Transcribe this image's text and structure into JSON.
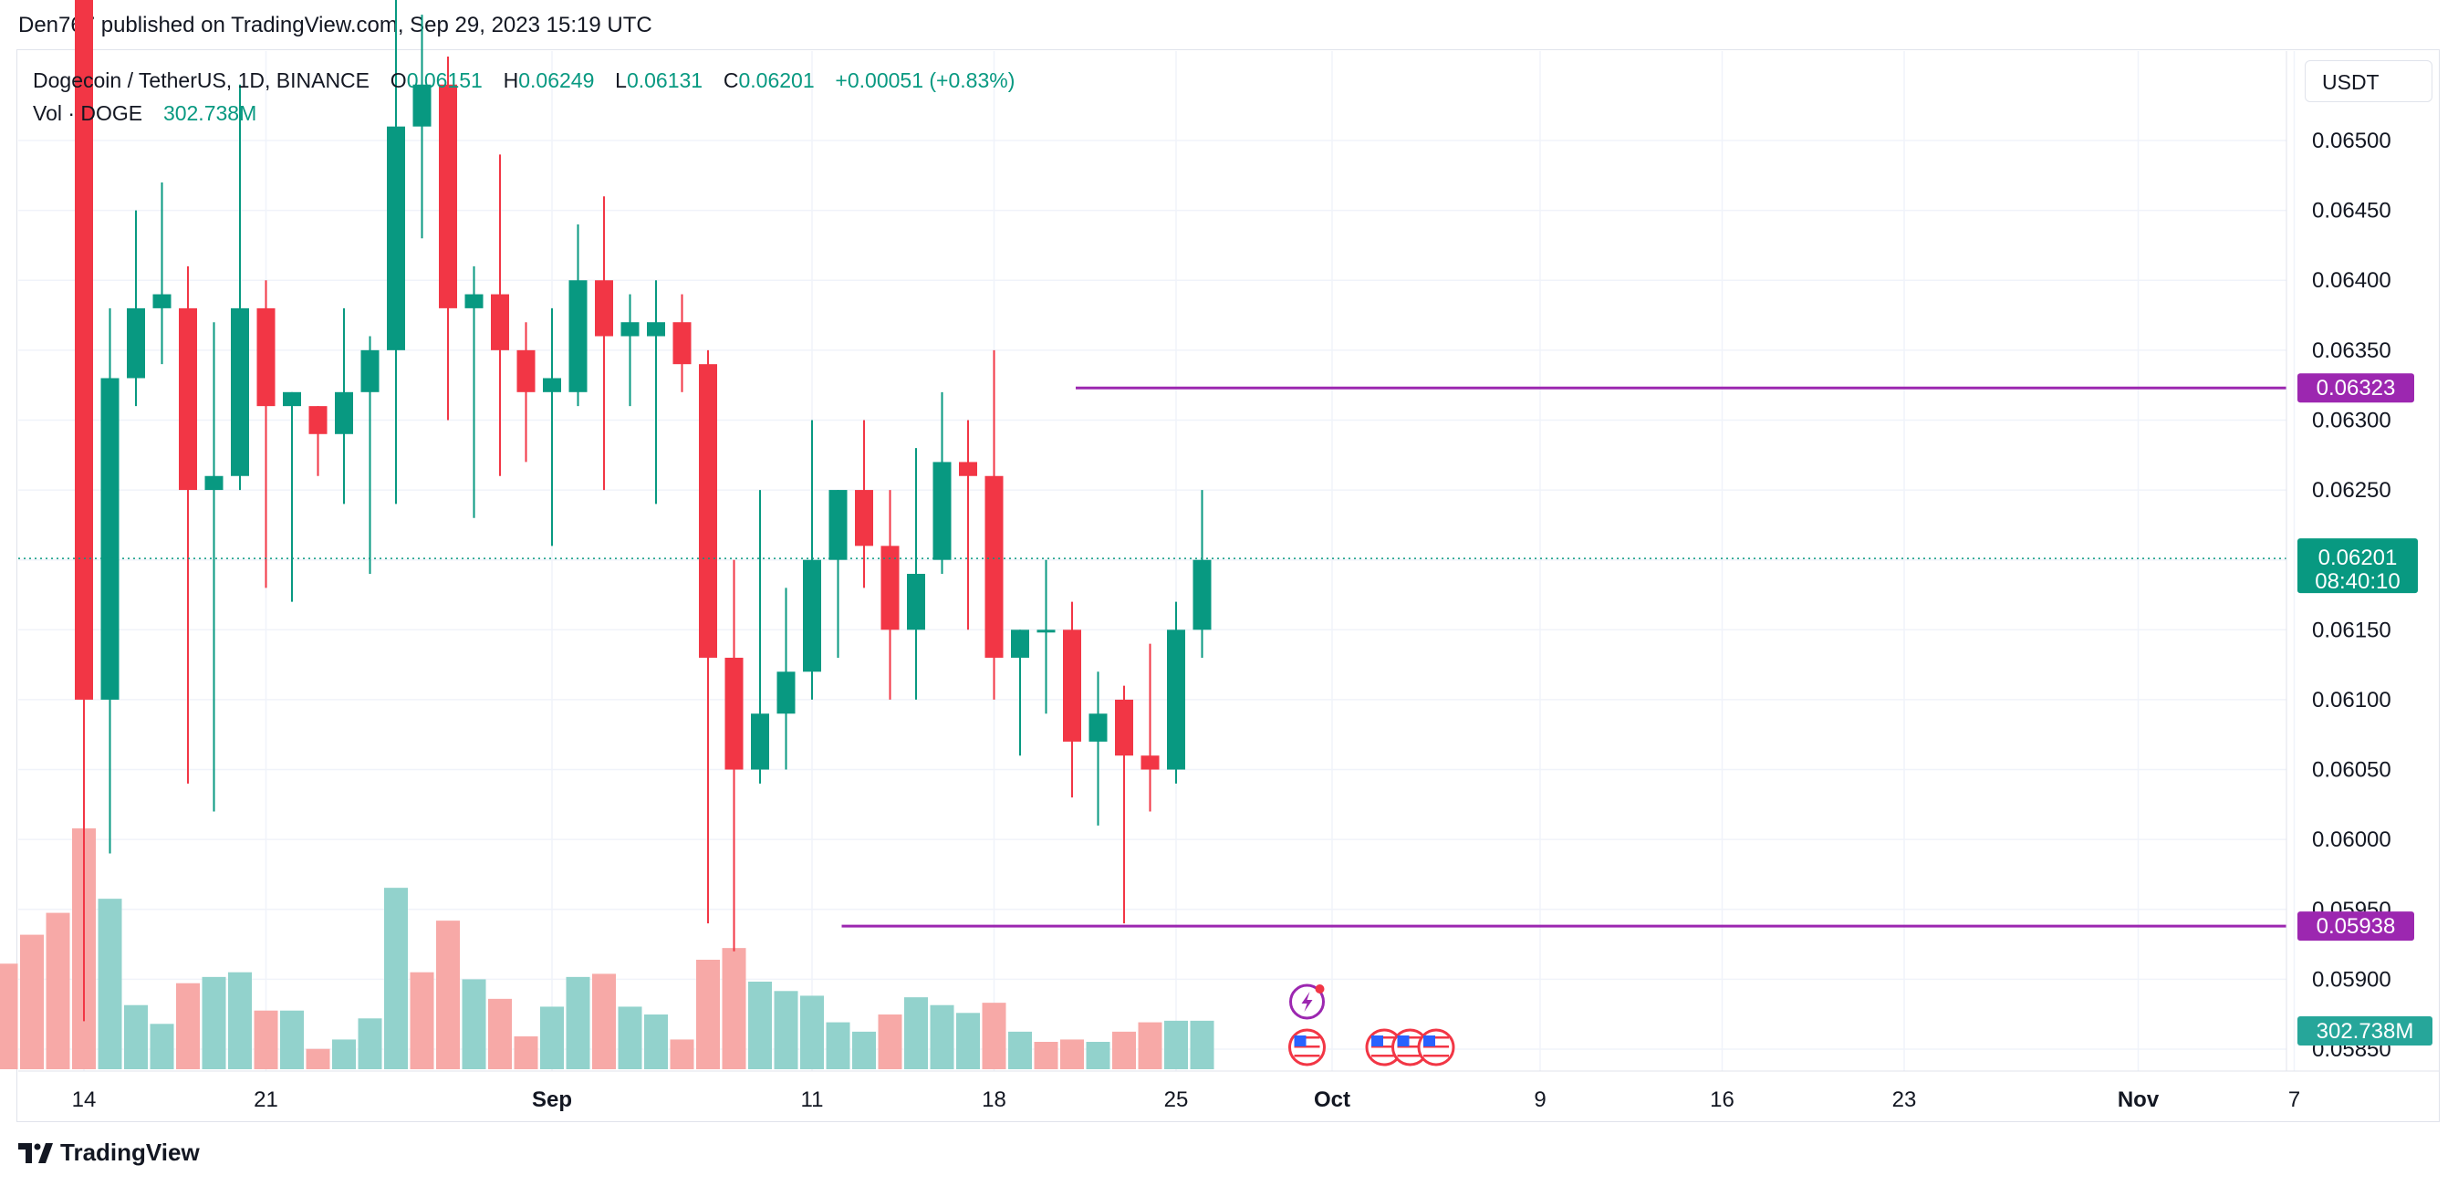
{
  "header": {
    "credit": "Den767 published on TradingView.com, Sep 29, 2023 15:19 UTC"
  },
  "legend": {
    "symbol": "Dogecoin / TetherUS, 1D, BINANCE",
    "o_label": "O",
    "o_value": "0.06151",
    "h_label": "H",
    "h_value": "0.06249",
    "l_label": "L",
    "l_value": "0.06131",
    "c_label": "C",
    "c_value": "0.06201",
    "change": "+0.00051 (+0.83%)",
    "vol_label": "Vol · DOGE",
    "vol_value": "302.738M"
  },
  "currency_button": "USDT",
  "footer": {
    "brand": "TradingView"
  },
  "colors": {
    "up": "#089981",
    "down": "#f23645",
    "up_vol": "#92d2cc",
    "down_vol": "#f7a9a7",
    "level": "#9c27b0"
  },
  "chart_data": {
    "type": "candlestick",
    "title": "Dogecoin / TetherUS, 1D, BINANCE",
    "ylim": [
      0.0584,
      0.06565
    ],
    "y_ticks": [
      "0.06500",
      "0.06450",
      "0.06400",
      "0.06350",
      "0.06300",
      "0.06250",
      "0.06200",
      "0.06150",
      "0.06100",
      "0.06050",
      "0.06000",
      "0.05950",
      "0.05900",
      "0.05850"
    ],
    "x_ticks": [
      {
        "label": "14",
        "day": 0,
        "bold": false
      },
      {
        "label": "21",
        "day": 7,
        "bold": false
      },
      {
        "label": "Sep",
        "day": 18,
        "bold": true
      },
      {
        "label": "11",
        "day": 28,
        "bold": false
      },
      {
        "label": "18",
        "day": 35,
        "bold": false
      },
      {
        "label": "25",
        "day": 42,
        "bold": false
      },
      {
        "label": "Oct",
        "day": 48,
        "bold": true
      },
      {
        "label": "9",
        "day": 56,
        "bold": false
      },
      {
        "label": "16",
        "day": 63,
        "bold": false
      },
      {
        "label": "23",
        "day": 70,
        "bold": false
      },
      {
        "label": "Nov",
        "day": 79,
        "bold": true
      },
      {
        "label": "7",
        "day": 85,
        "bold": false
      }
    ],
    "candles": [
      {
        "date": "Aug 16",
        "o": 0.0688,
        "h": 0.0705,
        "l": 0.0587,
        "c": 0.061
      },
      {
        "date": "Aug 17",
        "o": 0.061,
        "h": 0.0638,
        "l": 0.0599,
        "c": 0.0633
      },
      {
        "date": "Aug 18",
        "o": 0.0633,
        "h": 0.0645,
        "l": 0.0631,
        "c": 0.0638
      },
      {
        "date": "Aug 19",
        "o": 0.0638,
        "h": 0.0647,
        "l": 0.0634,
        "c": 0.0639
      },
      {
        "date": "Aug 20",
        "o": 0.0638,
        "h": 0.0641,
        "l": 0.0604,
        "c": 0.0625
      },
      {
        "date": "Aug 21",
        "o": 0.0625,
        "h": 0.0637,
        "l": 0.0602,
        "c": 0.0626
      },
      {
        "date": "Aug 22",
        "o": 0.0626,
        "h": 0.0654,
        "l": 0.0625,
        "c": 0.0638
      },
      {
        "date": "Aug 23",
        "o": 0.0638,
        "h": 0.064,
        "l": 0.0618,
        "c": 0.0631
      },
      {
        "date": "Aug 24",
        "o": 0.0631,
        "h": 0.0632,
        "l": 0.0617,
        "c": 0.0632
      },
      {
        "date": "Aug 25",
        "o": 0.0631,
        "h": 0.0631,
        "l": 0.0626,
        "c": 0.0629
      },
      {
        "date": "Aug 26",
        "o": 0.0629,
        "h": 0.0638,
        "l": 0.0624,
        "c": 0.0632
      },
      {
        "date": "Aug 27",
        "o": 0.0632,
        "h": 0.0636,
        "l": 0.0619,
        "c": 0.0635
      },
      {
        "date": "Aug 28",
        "o": 0.0635,
        "h": 0.0662,
        "l": 0.0624,
        "c": 0.0651
      },
      {
        "date": "Aug 29",
        "o": 0.0651,
        "h": 0.0659,
        "l": 0.0643,
        "c": 0.0654
      },
      {
        "date": "Aug 30",
        "o": 0.0654,
        "h": 0.0656,
        "l": 0.063,
        "c": 0.0638
      },
      {
        "date": "Aug 31",
        "o": 0.0638,
        "h": 0.0641,
        "l": 0.0623,
        "c": 0.0639
      },
      {
        "date": "Sep 1",
        "o": 0.0639,
        "h": 0.0649,
        "l": 0.0626,
        "c": 0.0635
      },
      {
        "date": "Sep 2",
        "o": 0.0635,
        "h": 0.0637,
        "l": 0.0627,
        "c": 0.0632
      },
      {
        "date": "Sep 3",
        "o": 0.0632,
        "h": 0.0638,
        "l": 0.0621,
        "c": 0.0633
      },
      {
        "date": "Sep 4",
        "o": 0.0632,
        "h": 0.0644,
        "l": 0.0631,
        "c": 0.064
      },
      {
        "date": "Sep 5",
        "o": 0.064,
        "h": 0.0646,
        "l": 0.0625,
        "c": 0.0636
      },
      {
        "date": "Sep 6",
        "o": 0.0636,
        "h": 0.0639,
        "l": 0.0631,
        "c": 0.0637
      },
      {
        "date": "Sep 7",
        "o": 0.0636,
        "h": 0.064,
        "l": 0.0624,
        "c": 0.0637
      },
      {
        "date": "Sep 8",
        "o": 0.0637,
        "h": 0.0639,
        "l": 0.0632,
        "c": 0.0634
      },
      {
        "date": "Sep 9",
        "o": 0.0634,
        "h": 0.0635,
        "l": 0.0594,
        "c": 0.0613
      },
      {
        "date": "Sep 10",
        "o": 0.0613,
        "h": 0.062,
        "l": 0.0592,
        "c": 0.0605
      },
      {
        "date": "Sep 11",
        "o": 0.0605,
        "h": 0.0625,
        "l": 0.0604,
        "c": 0.0609
      },
      {
        "date": "Sep 12",
        "o": 0.0609,
        "h": 0.0618,
        "l": 0.0605,
        "c": 0.0612
      },
      {
        "date": "Sep 13",
        "o": 0.0612,
        "h": 0.063,
        "l": 0.061,
        "c": 0.062
      },
      {
        "date": "Sep 14",
        "o": 0.062,
        "h": 0.0625,
        "l": 0.0613,
        "c": 0.0625
      },
      {
        "date": "Sep 15",
        "o": 0.0625,
        "h": 0.063,
        "l": 0.0618,
        "c": 0.0621
      },
      {
        "date": "Sep 16",
        "o": 0.0621,
        "h": 0.0625,
        "l": 0.061,
        "c": 0.0615
      },
      {
        "date": "Sep 17",
        "o": 0.0615,
        "h": 0.0628,
        "l": 0.061,
        "c": 0.0619
      },
      {
        "date": "Sep 18",
        "o": 0.062,
        "h": 0.0632,
        "l": 0.0619,
        "c": 0.0627
      },
      {
        "date": "Sep 19",
        "o": 0.0627,
        "h": 0.063,
        "l": 0.0615,
        "c": 0.0626
      },
      {
        "date": "Sep 20",
        "o": 0.0626,
        "h": 0.0635,
        "l": 0.061,
        "c": 0.0613
      },
      {
        "date": "Sep 21",
        "o": 0.0613,
        "h": 0.0615,
        "l": 0.0606,
        "c": 0.0615
      },
      {
        "date": "Sep 22",
        "o": 0.0615,
        "h": 0.062,
        "l": 0.0609,
        "c": 0.0615
      },
      {
        "date": "Sep 23",
        "o": 0.0615,
        "h": 0.0617,
        "l": 0.0603,
        "c": 0.0607
      },
      {
        "date": "Sep 24",
        "o": 0.0607,
        "h": 0.0612,
        "l": 0.0601,
        "c": 0.0609
      },
      {
        "date": "Sep 25",
        "o": 0.061,
        "h": 0.0611,
        "l": 0.0594,
        "c": 0.0606
      },
      {
        "date": "Sep 26",
        "o": 0.0606,
        "h": 0.0614,
        "l": 0.0602,
        "c": 0.0605
      },
      {
        "date": "Sep 27",
        "o": 0.0605,
        "h": 0.0617,
        "l": 0.0604,
        "c": 0.0615
      },
      {
        "date": "Sep 28",
        "o": 0.0615,
        "h": 0.0625,
        "l": 0.0613,
        "c": 0.062
      }
    ],
    "volume_scale_max": 350,
    "volumes": [
      {
        "day": -5,
        "v": 108,
        "dir": "up"
      },
      {
        "day": -4,
        "v": 90,
        "dir": "down"
      },
      {
        "day": -3,
        "v": 135,
        "dir": "down"
      },
      {
        "day": -2,
        "v": 172,
        "dir": "down"
      },
      {
        "day": -1,
        "v": 200,
        "dir": "down"
      },
      {
        "day": 0,
        "v": 308,
        "dir": "down"
      },
      {
        "day": 1,
        "v": 218,
        "dir": "up"
      },
      {
        "day": 2,
        "v": 82,
        "dir": "up"
      },
      {
        "day": 3,
        "v": 58,
        "dir": "up"
      },
      {
        "day": 4,
        "v": 110,
        "dir": "down"
      },
      {
        "day": 5,
        "v": 118,
        "dir": "up"
      },
      {
        "day": 6,
        "v": 124,
        "dir": "up"
      },
      {
        "day": 7,
        "v": 75,
        "dir": "down"
      },
      {
        "day": 8,
        "v": 75,
        "dir": "up"
      },
      {
        "day": 9,
        "v": 26,
        "dir": "down"
      },
      {
        "day": 10,
        "v": 38,
        "dir": "up"
      },
      {
        "day": 11,
        "v": 65,
        "dir": "up"
      },
      {
        "day": 12,
        "v": 232,
        "dir": "up"
      },
      {
        "day": 13,
        "v": 124,
        "dir": "down"
      },
      {
        "day": 14,
        "v": 190,
        "dir": "down"
      },
      {
        "day": 15,
        "v": 115,
        "dir": "up"
      },
      {
        "day": 16,
        "v": 90,
        "dir": "down"
      },
      {
        "day": 17,
        "v": 42,
        "dir": "down"
      },
      {
        "day": 18,
        "v": 80,
        "dir": "up"
      },
      {
        "day": 19,
        "v": 118,
        "dir": "up"
      },
      {
        "day": 20,
        "v": 122,
        "dir": "down"
      },
      {
        "day": 21,
        "v": 80,
        "dir": "up"
      },
      {
        "day": 22,
        "v": 70,
        "dir": "up"
      },
      {
        "day": 23,
        "v": 38,
        "dir": "down"
      },
      {
        "day": 24,
        "v": 140,
        "dir": "down"
      },
      {
        "day": 25,
        "v": 155,
        "dir": "down"
      },
      {
        "day": 26,
        "v": 112,
        "dir": "up"
      },
      {
        "day": 27,
        "v": 100,
        "dir": "up"
      },
      {
        "day": 28,
        "v": 94,
        "dir": "up"
      },
      {
        "day": 29,
        "v": 60,
        "dir": "up"
      },
      {
        "day": 30,
        "v": 48,
        "dir": "up"
      },
      {
        "day": 31,
        "v": 70,
        "dir": "down"
      },
      {
        "day": 32,
        "v": 92,
        "dir": "up"
      },
      {
        "day": 33,
        "v": 82,
        "dir": "up"
      },
      {
        "day": 34,
        "v": 72,
        "dir": "up"
      },
      {
        "day": 35,
        "v": 85,
        "dir": "down"
      },
      {
        "day": 36,
        "v": 48,
        "dir": "up"
      },
      {
        "day": 37,
        "v": 35,
        "dir": "down"
      },
      {
        "day": 38,
        "v": 38,
        "dir": "down"
      },
      {
        "day": 39,
        "v": 35,
        "dir": "up"
      },
      {
        "day": 40,
        "v": 48,
        "dir": "down"
      },
      {
        "day": 41,
        "v": 60,
        "dir": "down"
      },
      {
        "day": 42,
        "v": 62,
        "dir": "up"
      },
      {
        "day": 43,
        "v": 62,
        "dir": "up"
      }
    ],
    "lines": [
      {
        "name": "resistance",
        "price": 0.06323,
        "label": "0.06323",
        "from_day": 38
      },
      {
        "name": "support",
        "price": 0.05938,
        "label": "0.05938",
        "from_day": 29
      }
    ],
    "last_price": {
      "label": "0.06201",
      "value": 0.06201,
      "countdown": "08:40:10"
    },
    "volume_label": "302.738M",
    "events": [
      {
        "day": 47,
        "icon": "lightning-icon",
        "row": 0
      },
      {
        "day": 47,
        "icon": "us-flag-icon",
        "row": 1
      },
      {
        "day": 50,
        "icon": "us-flag-icon",
        "row": 1
      },
      {
        "day": 51,
        "icon": "us-flag-icon",
        "row": 1
      },
      {
        "day": 52,
        "icon": "us-flag-icon",
        "row": 1
      }
    ]
  }
}
